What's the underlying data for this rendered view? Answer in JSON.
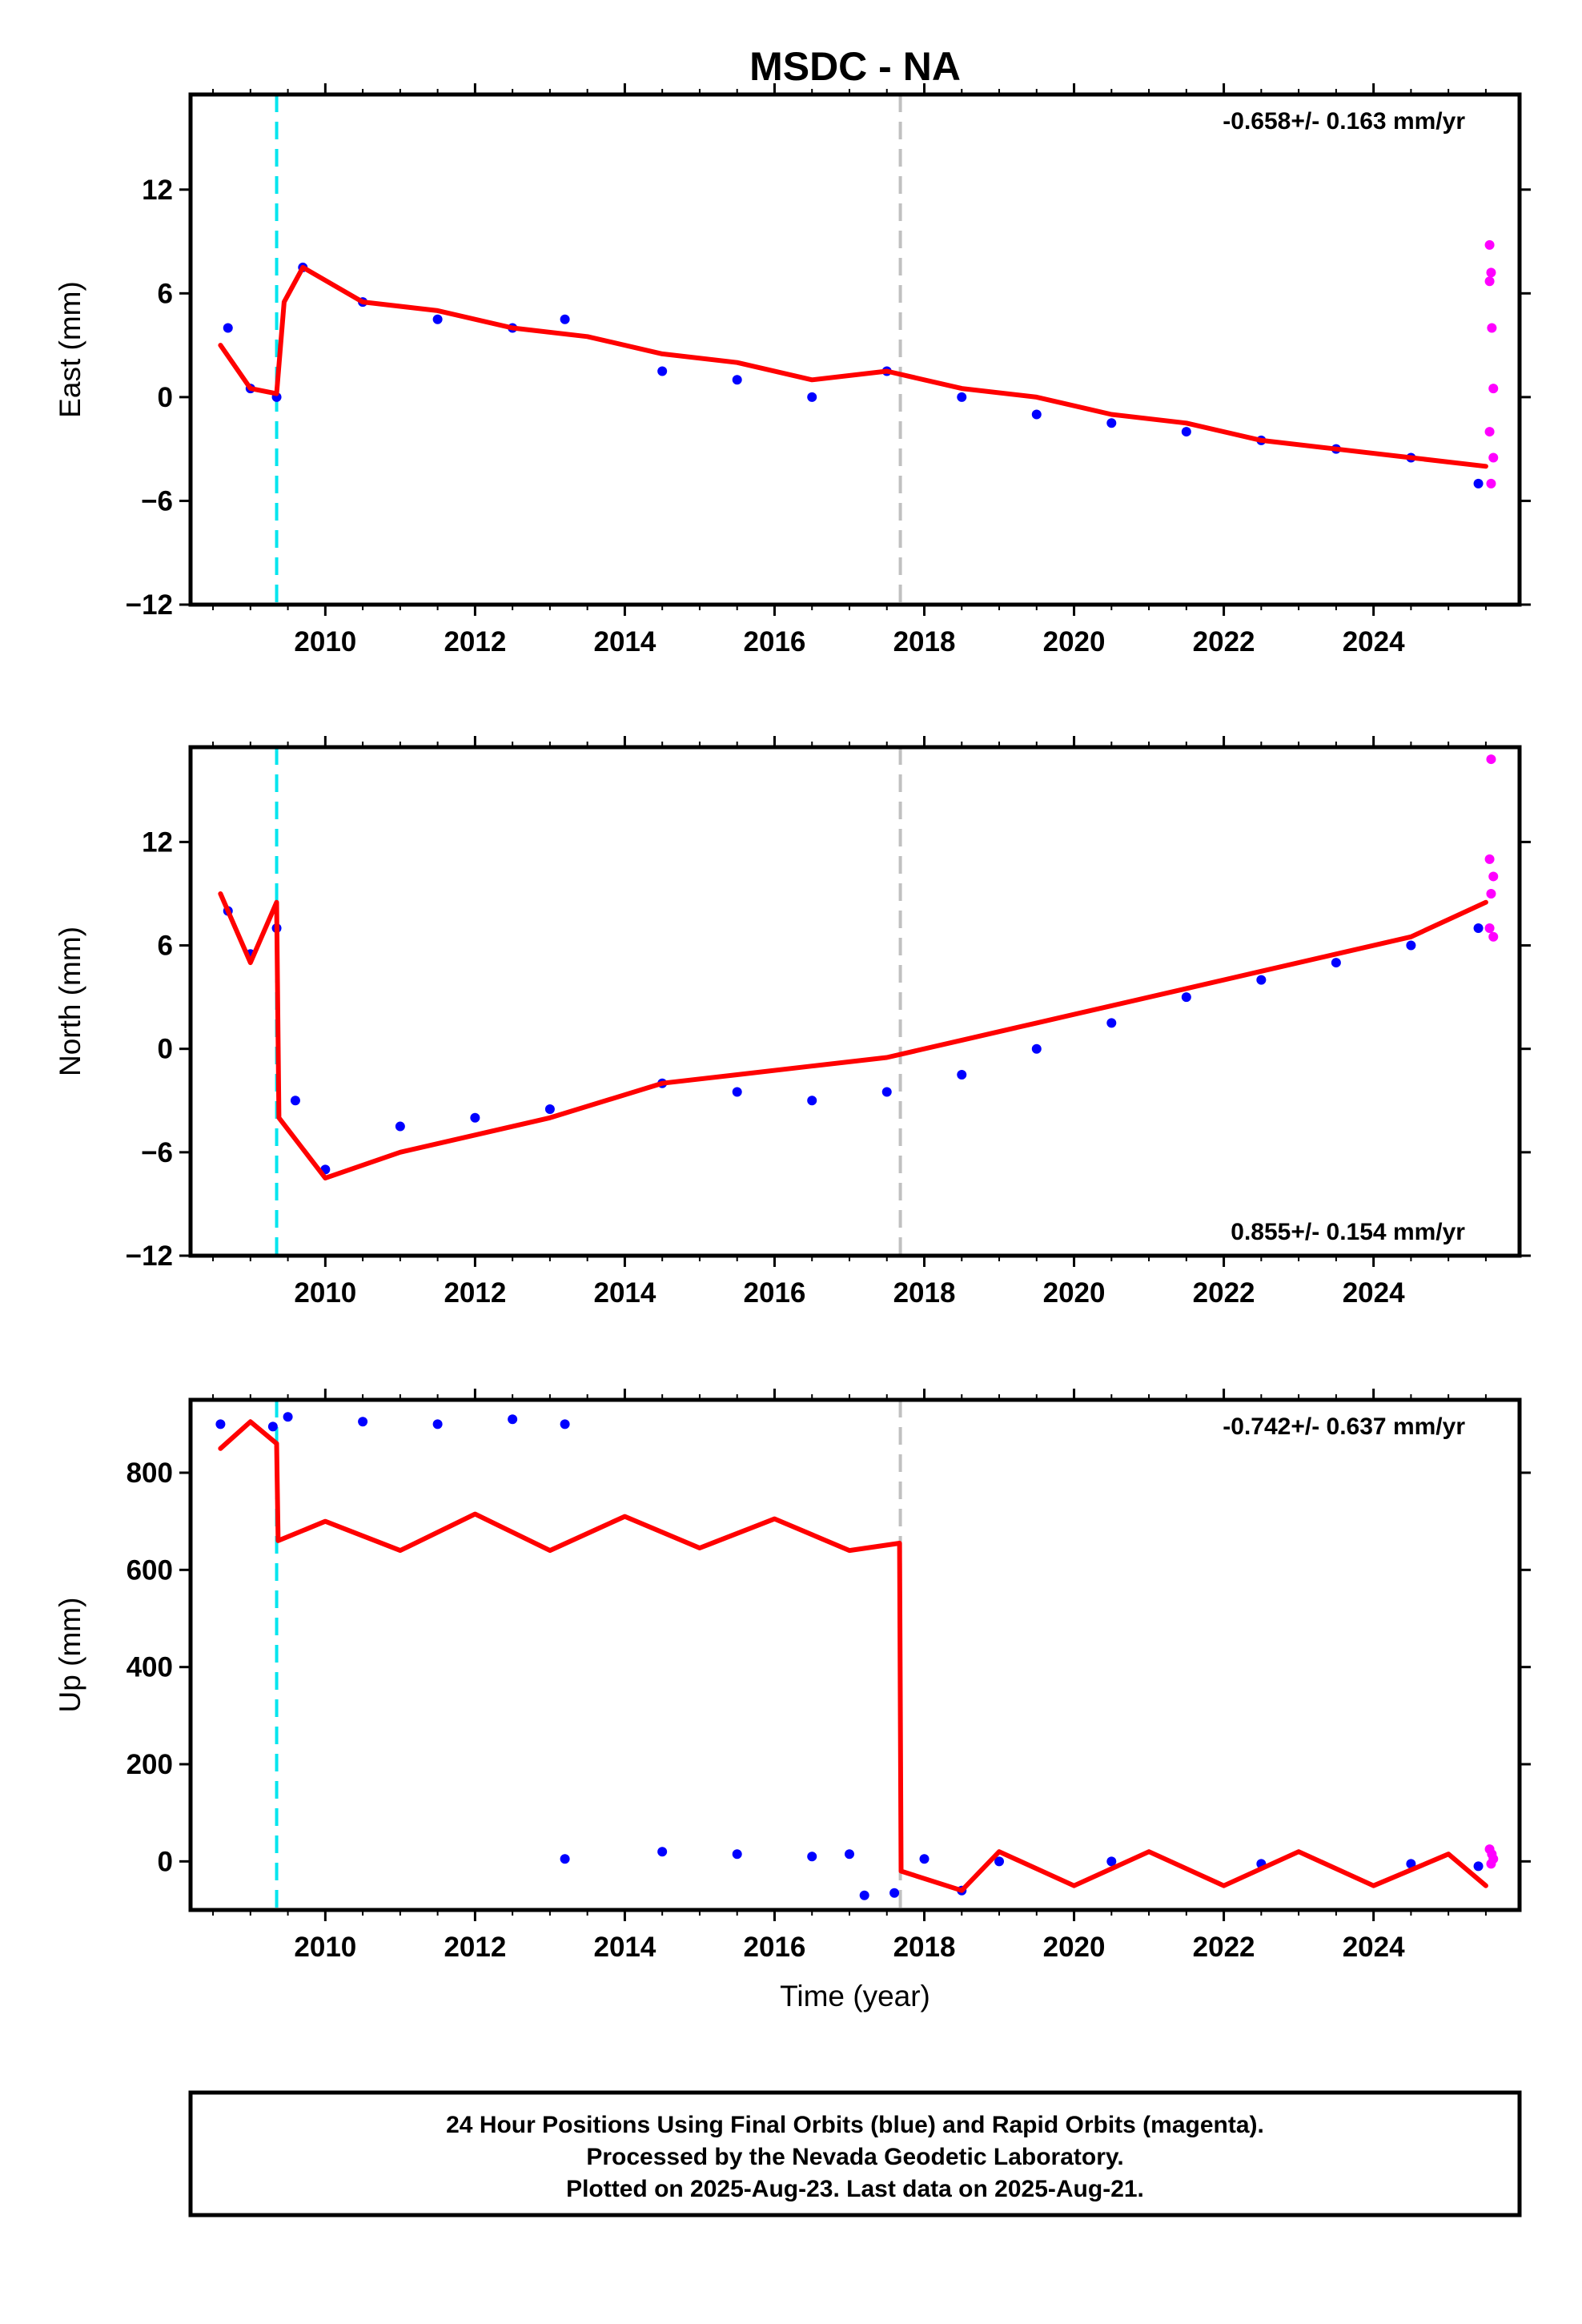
{
  "chart_data": [
    {
      "type": "scatter",
      "title": "MSDC - NA",
      "ylabel": "East (mm)",
      "xlabel": "",
      "xlim": [
        2008.2,
        2025.95
      ],
      "ylim": [
        -12,
        17.5
      ],
      "xticks": [
        "2010",
        "2012",
        "2014",
        "2016",
        "2018",
        "2020",
        "2022",
        "2024"
      ],
      "yticks": [
        "12",
        "6",
        "0",
        "−6",
        "−12"
      ],
      "rate_label": "-0.658+/- 0.163 mm/yr",
      "events": [
        {
          "x": 2009.35,
          "color": "#00e5ee",
          "style": "dashed"
        },
        {
          "x": 2017.68,
          "color": "#c0c0c0",
          "style": "dashed"
        }
      ],
      "series": [
        {
          "values": [
            [
              2008.7,
              4.0
            ],
            [
              2009.0,
              0.5
            ],
            [
              2009.35,
              0.0
            ],
            [
              2009.7,
              7.5
            ],
            [
              2010.5,
              5.5
            ],
            [
              2011.5,
              4.5
            ],
            [
              2012.5,
              4.0
            ],
            [
              2013.2,
              4.5
            ],
            [
              2014.5,
              1.5
            ],
            [
              2015.5,
              1.0
            ],
            [
              2016.5,
              0.0
            ],
            [
              2017.5,
              1.5
            ],
            [
              2018.5,
              0.0
            ],
            [
              2019.5,
              -1.0
            ],
            [
              2020.5,
              -1.5
            ],
            [
              2021.5,
              -2.0
            ],
            [
              2022.5,
              -2.5
            ],
            [
              2023.5,
              -3.0
            ],
            [
              2024.5,
              -3.5
            ],
            [
              2025.4,
              -5.0
            ]
          ],
          "color": "#0000ff"
        },
        {
          "values": [
            [
              2025.55,
              8.8
            ],
            [
              2025.57,
              7.2
            ],
            [
              2025.55,
              6.7
            ],
            [
              2025.58,
              4.0
            ],
            [
              2025.6,
              0.5
            ],
            [
              2025.55,
              -2.0
            ],
            [
              2025.6,
              -3.5
            ],
            [
              2025.57,
              -5.0
            ]
          ],
          "color": "#ff00ff"
        },
        {
          "values": [
            [
              2008.6,
              3.0
            ],
            [
              2009.0,
              0.5
            ],
            [
              2009.35,
              0.2
            ],
            [
              2009.45,
              5.5
            ],
            [
              2009.7,
              7.5
            ],
            [
              2010.5,
              5.5
            ],
            [
              2011.5,
              5.0
            ],
            [
              2012.5,
              4.0
            ],
            [
              2013.5,
              3.5
            ],
            [
              2014.5,
              2.5
            ],
            [
              2015.5,
              2.0
            ],
            [
              2016.5,
              1.0
            ],
            [
              2017.5,
              1.5
            ],
            [
              2018.5,
              0.5
            ],
            [
              2019.5,
              0.0
            ],
            [
              2020.5,
              -1.0
            ],
            [
              2021.5,
              -1.5
            ],
            [
              2022.5,
              -2.5
            ],
            [
              2023.5,
              -3.0
            ],
            [
              2024.5,
              -3.5
            ],
            [
              2025.5,
              -4.0
            ]
          ],
          "color": "#ff0000"
        }
      ]
    },
    {
      "type": "scatter",
      "title": "",
      "ylabel": "North (mm)",
      "xlabel": "",
      "xlim": [
        2008.2,
        2025.95
      ],
      "ylim": [
        -12,
        17.5
      ],
      "xticks": [
        "2010",
        "2012",
        "2014",
        "2016",
        "2018",
        "2020",
        "2022",
        "2024"
      ],
      "yticks": [
        "12",
        "6",
        "0",
        "−6",
        "−12"
      ],
      "rate_label": "0.855+/- 0.154 mm/yr",
      "events": [
        {
          "x": 2009.35,
          "color": "#00e5ee",
          "style": "dashed"
        },
        {
          "x": 2017.68,
          "color": "#c0c0c0",
          "style": "dashed"
        }
      ],
      "series": [
        {
          "values": [
            [
              2008.7,
              8.0
            ],
            [
              2009.0,
              5.5
            ],
            [
              2009.35,
              7.0
            ],
            [
              2009.6,
              -3.0
            ],
            [
              2010.0,
              -7.0
            ],
            [
              2011.0,
              -4.5
            ],
            [
              2012.0,
              -4.0
            ],
            [
              2013.0,
              -3.5
            ],
            [
              2014.5,
              -2.0
            ],
            [
              2015.5,
              -2.5
            ],
            [
              2016.5,
              -3.0
            ],
            [
              2017.5,
              -2.5
            ],
            [
              2018.5,
              -1.5
            ],
            [
              2019.5,
              0.0
            ],
            [
              2020.5,
              1.5
            ],
            [
              2021.5,
              3.0
            ],
            [
              2022.5,
              4.0
            ],
            [
              2023.5,
              5.0
            ],
            [
              2024.5,
              6.0
            ],
            [
              2025.4,
              7.0
            ]
          ],
          "color": "#0000ff"
        },
        {
          "values": [
            [
              2025.57,
              16.8
            ],
            [
              2025.55,
              11.0
            ],
            [
              2025.6,
              10.0
            ],
            [
              2025.57,
              9.0
            ],
            [
              2025.55,
              7.0
            ],
            [
              2025.6,
              6.5
            ]
          ],
          "color": "#ff00ff"
        },
        {
          "values": [
            [
              2008.6,
              9.0
            ],
            [
              2009.0,
              5.0
            ],
            [
              2009.35,
              8.5
            ],
            [
              2009.38,
              -4.0
            ],
            [
              2010.0,
              -7.5
            ],
            [
              2011.0,
              -6.0
            ],
            [
              2012.0,
              -5.0
            ],
            [
              2013.0,
              -4.0
            ],
            [
              2014.5,
              -2.0
            ],
            [
              2015.5,
              -1.5
            ],
            [
              2016.5,
              -1.0
            ],
            [
              2017.5,
              -0.5
            ],
            [
              2018.5,
              0.5
            ],
            [
              2019.5,
              1.5
            ],
            [
              2020.5,
              2.5
            ],
            [
              2021.5,
              3.5
            ],
            [
              2022.5,
              4.5
            ],
            [
              2023.5,
              5.5
            ],
            [
              2024.5,
              6.5
            ],
            [
              2025.5,
              8.5
            ]
          ],
          "color": "#ff0000"
        }
      ]
    },
    {
      "type": "scatter",
      "title": "",
      "ylabel": "Up (mm)",
      "xlabel": "Time (year)",
      "xlim": [
        2008.2,
        2025.95
      ],
      "ylim": [
        -100,
        950
      ],
      "xticks": [
        "2010",
        "2012",
        "2014",
        "2016",
        "2018",
        "2020",
        "2022",
        "2024"
      ],
      "yticks": [
        "800",
        "600",
        "400",
        "200",
        "0"
      ],
      "rate_label": "-0.742+/- 0.637 mm/yr",
      "events": [
        {
          "x": 2009.35,
          "color": "#00e5ee",
          "style": "dashed"
        },
        {
          "x": 2017.68,
          "color": "#c0c0c0",
          "style": "dashed"
        }
      ],
      "series": [
        {
          "values": [
            [
              2008.6,
              900
            ],
            [
              2009.3,
              895
            ],
            [
              2009.5,
              915
            ],
            [
              2010.5,
              905
            ],
            [
              2011.5,
              900
            ],
            [
              2012.5,
              910
            ],
            [
              2013.2,
              900
            ],
            [
              2013.2,
              5
            ],
            [
              2014.5,
              20
            ],
            [
              2015.5,
              15
            ],
            [
              2016.5,
              10
            ],
            [
              2017.0,
              15
            ],
            [
              2017.2,
              -70
            ],
            [
              2017.6,
              -65
            ],
            [
              2018.0,
              5
            ],
            [
              2018.5,
              -60
            ],
            [
              2019.0,
              0
            ],
            [
              2020.5,
              0
            ],
            [
              2022.5,
              -5
            ],
            [
              2024.5,
              -5
            ],
            [
              2025.4,
              -10
            ]
          ],
          "color": "#0000ff"
        },
        {
          "values": [
            [
              2025.55,
              25
            ],
            [
              2025.58,
              15
            ],
            [
              2025.6,
              5
            ],
            [
              2025.57,
              -5
            ]
          ],
          "color": "#ff00ff"
        },
        {
          "values": [
            [
              2008.6,
              850
            ],
            [
              2009.0,
              905
            ],
            [
              2009.35,
              860
            ],
            [
              2009.37,
              660
            ],
            [
              2010.0,
              700
            ],
            [
              2011.0,
              640
            ],
            [
              2012.0,
              715
            ],
            [
              2013.0,
              640
            ],
            [
              2014.0,
              710
            ],
            [
              2015.0,
              645
            ],
            [
              2016.0,
              705
            ],
            [
              2017.0,
              640
            ],
            [
              2017.67,
              655
            ],
            [
              2017.69,
              -20
            ],
            [
              2018.5,
              -60
            ],
            [
              2019.0,
              20
            ],
            [
              2020.0,
              -50
            ],
            [
              2021.0,
              20
            ],
            [
              2022.0,
              -50
            ],
            [
              2023.0,
              20
            ],
            [
              2024.0,
              -50
            ],
            [
              2025.0,
              15
            ],
            [
              2025.5,
              -50
            ]
          ],
          "color": "#ff0000"
        }
      ]
    }
  ],
  "footer": {
    "line1": "24 Hour Positions Using Final Orbits (blue) and Rapid Orbits (magenta).",
    "line2": "Processed by the Nevada Geodetic Laboratory.",
    "line3": "Plotted on 2025-Aug-23. Last data on 2025-Aug-21."
  }
}
